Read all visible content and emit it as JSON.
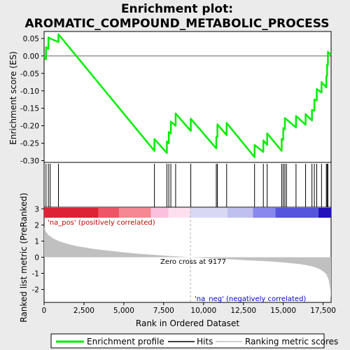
{
  "chart_data": {
    "type": "line",
    "title": "Enrichment plot:\nAROMATIC_COMPOUND_METABOLIC_PROCESS",
    "title_lines": [
      "Enrichment plot:",
      "AROMATIC_COMPOUND_METABOLIC_PROCESS"
    ],
    "xlabel": "Rank in Ordered Dataset",
    "es_ylabel": "Enrichment score (ES)",
    "metric_ylabel": "Ranked list metric (PreRanked)",
    "xlim": [
      0,
      18000
    ],
    "x_ticks": [
      0,
      2500,
      5000,
      7500,
      10000,
      12500,
      15000,
      17500
    ],
    "x_tick_labels": [
      "0",
      "2,500",
      "5,000",
      "7,500",
      "10,000",
      "12,500",
      "15,000",
      "17,500"
    ],
    "es_ylim": [
      -0.305,
      0.07
    ],
    "es_ticks": [
      0.05,
      0.0,
      -0.05,
      -0.1,
      -0.15,
      -0.2,
      -0.25,
      -0.3
    ],
    "es_tick_labels": [
      "0.05",
      "0.00",
      "-0.05",
      "-0.10",
      "-0.15",
      "-0.20",
      "-0.25",
      "-0.30"
    ],
    "metric_ylim": [
      -2.8,
      3.1
    ],
    "metric_ticks": [
      3,
      2,
      1,
      0,
      -1,
      -2
    ],
    "metric_tick_labels": [
      "3",
      "2",
      "1",
      "0",
      "-1",
      "-2"
    ],
    "hits": [
      120,
      270,
      380,
      900,
      6920,
      7700,
      7820,
      7950,
      8250,
      9200,
      10800,
      10870,
      11450,
      13200,
      13750,
      13990,
      14900,
      15000,
      15100,
      15200,
      15800,
      16400,
      16800,
      16950,
      17100,
      17400,
      17700,
      17750,
      17800
    ],
    "es_profile": [
      [
        0,
        0.0
      ],
      [
        120,
        -0.01
      ],
      [
        121,
        0.025
      ],
      [
        270,
        0.02
      ],
      [
        271,
        0.053
      ],
      [
        380,
        0.05
      ],
      [
        900,
        0.04
      ],
      [
        901,
        0.062
      ],
      [
        6920,
        -0.272
      ],
      [
        6921,
        -0.238
      ],
      [
        7700,
        -0.278
      ],
      [
        7701,
        -0.245
      ],
      [
        7820,
        -0.25
      ],
      [
        7821,
        -0.218
      ],
      [
        7950,
        -0.222
      ],
      [
        7951,
        -0.188
      ],
      [
        8250,
        -0.2
      ],
      [
        8251,
        -0.165
      ],
      [
        9200,
        -0.215
      ],
      [
        9201,
        -0.18
      ],
      [
        10800,
        -0.265
      ],
      [
        10801,
        -0.232
      ],
      [
        10870,
        -0.232
      ],
      [
        10871,
        -0.196
      ],
      [
        11450,
        -0.227
      ],
      [
        11451,
        -0.192
      ],
      [
        13200,
        -0.29
      ],
      [
        13201,
        -0.255
      ],
      [
        13750,
        -0.275
      ],
      [
        13751,
        -0.242
      ],
      [
        13990,
        -0.255
      ],
      [
        13991,
        -0.222
      ],
      [
        14900,
        -0.272
      ],
      [
        14901,
        -0.238
      ],
      [
        15000,
        -0.24
      ],
      [
        15001,
        -0.207
      ],
      [
        15100,
        -0.21
      ],
      [
        15101,
        -0.178
      ],
      [
        15800,
        -0.205
      ],
      [
        15801,
        -0.172
      ],
      [
        16400,
        -0.197
      ],
      [
        16401,
        -0.167
      ],
      [
        16800,
        -0.185
      ],
      [
        16801,
        -0.155
      ],
      [
        16950,
        -0.157
      ],
      [
        16951,
        -0.125
      ],
      [
        17100,
        -0.127
      ],
      [
        17101,
        -0.095
      ],
      [
        17400,
        -0.105
      ],
      [
        17401,
        -0.075
      ],
      [
        17700,
        -0.09
      ],
      [
        17701,
        -0.058
      ],
      [
        17750,
        -0.058
      ],
      [
        17751,
        -0.025
      ],
      [
        17800,
        -0.026
      ],
      [
        17801,
        0.012
      ],
      [
        18000,
        0.002
      ]
    ],
    "metric_curve": [
      [
        0,
        1.85
      ],
      [
        100,
        1.6
      ],
      [
        300,
        1.35
      ],
      [
        600,
        1.15
      ],
      [
        1000,
        0.97
      ],
      [
        1500,
        0.82
      ],
      [
        2000,
        0.7
      ],
      [
        3000,
        0.53
      ],
      [
        4000,
        0.41
      ],
      [
        5000,
        0.3
      ],
      [
        6000,
        0.21
      ],
      [
        7000,
        0.14
      ],
      [
        8000,
        0.07
      ],
      [
        9177,
        0.0
      ],
      [
        10000,
        -0.05
      ],
      [
        11000,
        -0.1
      ],
      [
        12000,
        -0.15
      ],
      [
        13000,
        -0.2
      ],
      [
        14000,
        -0.25
      ],
      [
        15000,
        -0.32
      ],
      [
        15500,
        -0.37
      ],
      [
        16000,
        -0.42
      ],
      [
        16500,
        -0.5
      ],
      [
        17000,
        -0.62
      ],
      [
        17400,
        -0.8
      ],
      [
        17700,
        -1.05
      ],
      [
        17850,
        -1.4
      ],
      [
        17950,
        -2.0
      ],
      [
        18000,
        -2.55
      ]
    ],
    "zero_cross": 9177,
    "zero_cross_label": "Zero cross at 9177",
    "pos_label": "'na_pos' (positively correlated)",
    "neg_label": "'na_neg' (negatively correlated)",
    "heatmap_segments": [
      {
        "x0": 0,
        "x1": 3400,
        "color": "#dd2233"
      },
      {
        "x0": 3400,
        "x1": 4700,
        "color": "#ee5566"
      },
      {
        "x0": 4700,
        "x1": 6700,
        "color": "#f58892"
      },
      {
        "x0": 6700,
        "x1": 7800,
        "color": "#fbc0dc"
      },
      {
        "x0": 7800,
        "x1": 9177,
        "color": "#fde0f0"
      },
      {
        "x0": 9177,
        "x1": 11500,
        "color": "#d8d8f5"
      },
      {
        "x0": 11500,
        "x1": 13100,
        "color": "#c0c0f0"
      },
      {
        "x0": 13100,
        "x1": 14500,
        "color": "#8888ee"
      },
      {
        "x0": 14500,
        "x1": 17200,
        "color": "#5555dd"
      },
      {
        "x0": 17200,
        "x1": 18000,
        "color": "#2211bb"
      }
    ],
    "legend": [
      "Enrichment profile",
      "Hits",
      "Ranking metric scores"
    ],
    "colors": {
      "es_line": "#00ee00",
      "hits": "#000000",
      "metric_fill": "#c0c0c0",
      "zero_line": "#aaaaaa",
      "pos_label": "#cc0000",
      "neg_label": "#0000cc",
      "background": "#ebebeb",
      "plot_bg": "#ffffff"
    }
  }
}
